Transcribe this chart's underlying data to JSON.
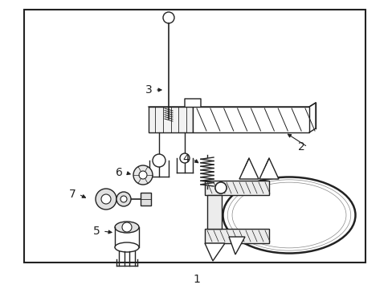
{
  "bg_color": "#ffffff",
  "border_color": "#222222",
  "line_color": "#222222",
  "label_color": "#000000",
  "figsize": [
    4.89,
    3.6
  ],
  "dpi": 100
}
